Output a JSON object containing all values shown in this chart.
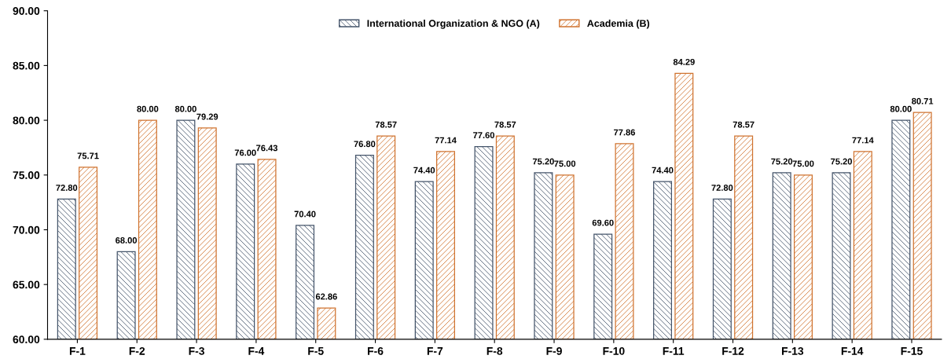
{
  "chart_data": {
    "type": "bar",
    "categories": [
      "F-1",
      "F-2",
      "F-3",
      "F-4",
      "F-5",
      "F-6",
      "F-7",
      "F-8",
      "F-9",
      "F-10",
      "F-11",
      "F-12",
      "F-13",
      "F-14",
      "F-15"
    ],
    "series": [
      {
        "name": "International Organization & NGO (A)",
        "color": "#44546a",
        "values": [
          72.8,
          68.0,
          80.0,
          76.0,
          70.4,
          76.8,
          74.4,
          77.6,
          75.2,
          69.6,
          74.4,
          72.8,
          75.2,
          75.2,
          80.0
        ],
        "value_labels": [
          "72.80",
          "68.00",
          "80.00",
          "76.00",
          "70.40",
          "76.80",
          "74.40",
          "77.60",
          "75.20",
          "69.60",
          "74.40",
          "72.80",
          "75.20",
          "75.20",
          "80.00"
        ]
      },
      {
        "name": "Academia (B)",
        "color": "#d0732f",
        "values": [
          75.71,
          80.0,
          79.29,
          76.43,
          62.86,
          78.57,
          77.14,
          78.57,
          75.0,
          77.86,
          84.29,
          78.57,
          75.0,
          77.14,
          80.71
        ],
        "value_labels": [
          "75.71",
          "80.00",
          "79.29",
          "76.43",
          "62.86",
          "78.57",
          "77.14",
          "78.57",
          "75.00",
          "77.86",
          "84.29",
          "78.57",
          "75.00",
          "77.14",
          "80.71"
        ]
      }
    ],
    "ylim": [
      60,
      90
    ],
    "yticks": [
      {
        "value": 60,
        "label": "60.00"
      },
      {
        "value": 65,
        "label": "65.00"
      },
      {
        "value": 70,
        "label": "70.00"
      },
      {
        "value": 75,
        "label": "75.00"
      },
      {
        "value": 80,
        "label": "80.00"
      },
      {
        "value": 85,
        "label": "85.00"
      },
      {
        "value": 90,
        "label": "90.00"
      }
    ],
    "grid": false,
    "legend": "top"
  }
}
